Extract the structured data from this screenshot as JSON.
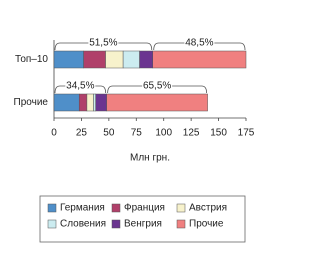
{
  "chart_data": {
    "type": "stacked-bar-horizontal",
    "categories": [
      "Топ–10",
      "Прочие"
    ],
    "series": [
      {
        "name": "Германия",
        "color": "#4f8fc9",
        "values": [
          27,
          23
        ]
      },
      {
        "name": "Франция",
        "color": "#b0406a",
        "values": [
          20,
          7
        ]
      },
      {
        "name": "Австрия",
        "color": "#f7f2cc",
        "values": [
          16,
          6
        ]
      },
      {
        "name": "Словения",
        "color": "#ccecf0",
        "values": [
          15,
          2
        ]
      },
      {
        "name": "Венгрия",
        "color": "#6b3590",
        "values": [
          12,
          10
        ]
      },
      {
        "name": "Прочие",
        "color": "#f08080",
        "values": [
          85,
          92
        ]
      }
    ],
    "group_labels": [
      [
        "51,5%",
        "48,5%"
      ],
      [
        "34,5%",
        "65,5%"
      ]
    ],
    "xlim": [
      0,
      175
    ],
    "xticks": [
      0,
      25,
      50,
      75,
      100,
      125,
      150,
      175
    ],
    "xlabel": "Млн грн."
  }
}
